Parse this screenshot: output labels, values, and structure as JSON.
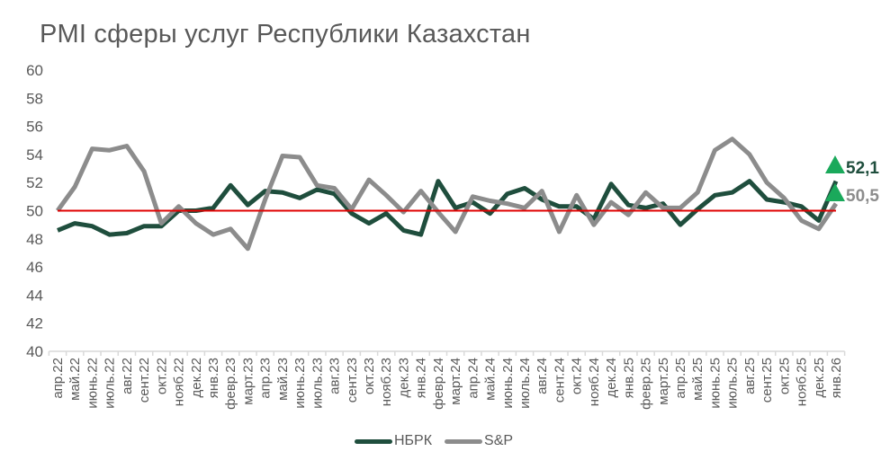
{
  "chart_data": {
    "type": "line",
    "title": "PMI сферы услуг Республики Казахстан",
    "xlabel": "",
    "ylabel": "",
    "ylim": [
      40,
      60
    ],
    "yticks": [
      40,
      42,
      44,
      46,
      48,
      50,
      52,
      54,
      56,
      58,
      60
    ],
    "grid": false,
    "legend_position": "bottom",
    "reference_line": {
      "value": 50,
      "color": "#e00000"
    },
    "categories": [
      "апр.22",
      "май.22",
      "июнь.22",
      "июль.22",
      "авг.22",
      "сент.22",
      "окт.22",
      "нояб.22",
      "дек.22",
      "янв.23",
      "февр.23",
      "март.23",
      "апр.23",
      "май.23",
      "июнь.23",
      "июль.23",
      "авг.23",
      "сент.23",
      "окт.23",
      "нояб.23",
      "дек.23",
      "янв.24",
      "февр.24",
      "март.24",
      "апр.24",
      "май.24",
      "июнь.24",
      "июль.24",
      "авг.24",
      "сент.24",
      "окт.24",
      "нояб.24",
      "дек.24",
      "янв.25",
      "февр.25",
      "март.25",
      "апр.25",
      "май.25",
      "июнь.25",
      "июль.25",
      "авг.25",
      "сент.25",
      "окт.25",
      "нояб.25",
      "дек.25",
      "янв.26"
    ],
    "series": [
      {
        "name": "НБРК",
        "color": "#1f4e3d",
        "values": [
          48.6,
          49.1,
          48.9,
          48.3,
          48.4,
          48.9,
          48.9,
          50.0,
          50.0,
          50.2,
          51.8,
          50.4,
          51.4,
          51.3,
          50.9,
          51.5,
          51.2,
          49.8,
          49.1,
          49.8,
          48.6,
          48.3,
          52.1,
          50.2,
          50.6,
          49.8,
          51.2,
          51.6,
          50.8,
          50.3,
          50.3,
          49.4,
          51.9,
          50.4,
          50.2,
          50.5,
          49.0,
          50.1,
          51.1,
          51.3,
          52.1,
          50.8,
          50.6,
          50.3,
          49.3,
          52.1
        ],
        "end_label": "52,1"
      },
      {
        "name": "S&P",
        "color": "#8c8c8c",
        "values": [
          50.0,
          51.7,
          54.4,
          54.3,
          54.6,
          52.8,
          49.1,
          50.3,
          49.1,
          48.3,
          48.7,
          47.3,
          50.8,
          53.9,
          53.8,
          51.8,
          51.6,
          50.1,
          52.2,
          51.1,
          49.9,
          51.4,
          49.9,
          48.5,
          51.0,
          50.7,
          50.5,
          50.2,
          51.4,
          48.5,
          51.1,
          49.0,
          50.6,
          49.7,
          51.3,
          50.2,
          50.2,
          51.3,
          54.3,
          55.1,
          54.0,
          52.0,
          50.9,
          49.3,
          48.7,
          50.5
        ],
        "end_label": "50,5"
      }
    ],
    "annotations": [
      {
        "text": "52,1",
        "marker": "triangle-up",
        "marker_color": "#1aa95b",
        "series": "НБРК"
      },
      {
        "text": "50,5",
        "marker": "triangle-up",
        "marker_color": "#1aa95b",
        "series": "S&P"
      }
    ]
  },
  "legend": {
    "items": [
      {
        "label": "НБРК",
        "color": "#1f4e3d"
      },
      {
        "label": "S&P",
        "color": "#8c8c8c"
      }
    ]
  }
}
